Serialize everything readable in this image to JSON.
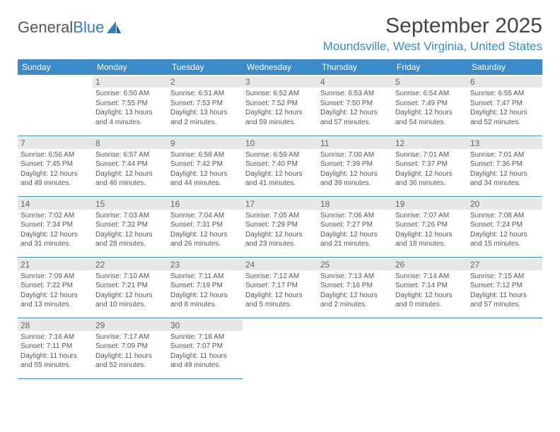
{
  "brand": {
    "part1": "General",
    "part2": "Blue"
  },
  "title": "September 2025",
  "location": "Moundsville, West Virginia, United States",
  "day_headers": [
    "Sunday",
    "Monday",
    "Tuesday",
    "Wednesday",
    "Thursday",
    "Friday",
    "Saturday"
  ],
  "colors": {
    "header_bg": "#3b8bc9",
    "daynum_bg": "#e7e7e7",
    "text": "#555"
  },
  "weeks": [
    [
      null,
      {
        "n": "1",
        "sr": "Sunrise: 6:50 AM",
        "ss": "Sunset: 7:55 PM",
        "d1": "Daylight: 13 hours",
        "d2": "and 4 minutes."
      },
      {
        "n": "2",
        "sr": "Sunrise: 6:51 AM",
        "ss": "Sunset: 7:53 PM",
        "d1": "Daylight: 13 hours",
        "d2": "and 2 minutes."
      },
      {
        "n": "3",
        "sr": "Sunrise: 6:52 AM",
        "ss": "Sunset: 7:52 PM",
        "d1": "Daylight: 12 hours",
        "d2": "and 59 minutes."
      },
      {
        "n": "4",
        "sr": "Sunrise: 6:53 AM",
        "ss": "Sunset: 7:50 PM",
        "d1": "Daylight: 12 hours",
        "d2": "and 57 minutes."
      },
      {
        "n": "5",
        "sr": "Sunrise: 6:54 AM",
        "ss": "Sunset: 7:49 PM",
        "d1": "Daylight: 12 hours",
        "d2": "and 54 minutes."
      },
      {
        "n": "6",
        "sr": "Sunrise: 6:55 AM",
        "ss": "Sunset: 7:47 PM",
        "d1": "Daylight: 12 hours",
        "d2": "and 52 minutes."
      }
    ],
    [
      {
        "n": "7",
        "sr": "Sunrise: 6:56 AM",
        "ss": "Sunset: 7:45 PM",
        "d1": "Daylight: 12 hours",
        "d2": "and 49 minutes."
      },
      {
        "n": "8",
        "sr": "Sunrise: 6:57 AM",
        "ss": "Sunset: 7:44 PM",
        "d1": "Daylight: 12 hours",
        "d2": "and 46 minutes."
      },
      {
        "n": "9",
        "sr": "Sunrise: 6:58 AM",
        "ss": "Sunset: 7:42 PM",
        "d1": "Daylight: 12 hours",
        "d2": "and 44 minutes."
      },
      {
        "n": "10",
        "sr": "Sunrise: 6:59 AM",
        "ss": "Sunset: 7:40 PM",
        "d1": "Daylight: 12 hours",
        "d2": "and 41 minutes."
      },
      {
        "n": "11",
        "sr": "Sunrise: 7:00 AM",
        "ss": "Sunset: 7:39 PM",
        "d1": "Daylight: 12 hours",
        "d2": "and 39 minutes."
      },
      {
        "n": "12",
        "sr": "Sunrise: 7:01 AM",
        "ss": "Sunset: 7:37 PM",
        "d1": "Daylight: 12 hours",
        "d2": "and 36 minutes."
      },
      {
        "n": "13",
        "sr": "Sunrise: 7:01 AM",
        "ss": "Sunset: 7:36 PM",
        "d1": "Daylight: 12 hours",
        "d2": "and 34 minutes."
      }
    ],
    [
      {
        "n": "14",
        "sr": "Sunrise: 7:02 AM",
        "ss": "Sunset: 7:34 PM",
        "d1": "Daylight: 12 hours",
        "d2": "and 31 minutes."
      },
      {
        "n": "15",
        "sr": "Sunrise: 7:03 AM",
        "ss": "Sunset: 7:32 PM",
        "d1": "Daylight: 12 hours",
        "d2": "and 28 minutes."
      },
      {
        "n": "16",
        "sr": "Sunrise: 7:04 AM",
        "ss": "Sunset: 7:31 PM",
        "d1": "Daylight: 12 hours",
        "d2": "and 26 minutes."
      },
      {
        "n": "17",
        "sr": "Sunrise: 7:05 AM",
        "ss": "Sunset: 7:29 PM",
        "d1": "Daylight: 12 hours",
        "d2": "and 23 minutes."
      },
      {
        "n": "18",
        "sr": "Sunrise: 7:06 AM",
        "ss": "Sunset: 7:27 PM",
        "d1": "Daylight: 12 hours",
        "d2": "and 21 minutes."
      },
      {
        "n": "19",
        "sr": "Sunrise: 7:07 AM",
        "ss": "Sunset: 7:26 PM",
        "d1": "Daylight: 12 hours",
        "d2": "and 18 minutes."
      },
      {
        "n": "20",
        "sr": "Sunrise: 7:08 AM",
        "ss": "Sunset: 7:24 PM",
        "d1": "Daylight: 12 hours",
        "d2": "and 15 minutes."
      }
    ],
    [
      {
        "n": "21",
        "sr": "Sunrise: 7:09 AM",
        "ss": "Sunset: 7:22 PM",
        "d1": "Daylight: 12 hours",
        "d2": "and 13 minutes."
      },
      {
        "n": "22",
        "sr": "Sunrise: 7:10 AM",
        "ss": "Sunset: 7:21 PM",
        "d1": "Daylight: 12 hours",
        "d2": "and 10 minutes."
      },
      {
        "n": "23",
        "sr": "Sunrise: 7:11 AM",
        "ss": "Sunset: 7:19 PM",
        "d1": "Daylight: 12 hours",
        "d2": "and 8 minutes."
      },
      {
        "n": "24",
        "sr": "Sunrise: 7:12 AM",
        "ss": "Sunset: 7:17 PM",
        "d1": "Daylight: 12 hours",
        "d2": "and 5 minutes."
      },
      {
        "n": "25",
        "sr": "Sunrise: 7:13 AM",
        "ss": "Sunset: 7:16 PM",
        "d1": "Daylight: 12 hours",
        "d2": "and 2 minutes."
      },
      {
        "n": "26",
        "sr": "Sunrise: 7:14 AM",
        "ss": "Sunset: 7:14 PM",
        "d1": "Daylight: 12 hours",
        "d2": "and 0 minutes."
      },
      {
        "n": "27",
        "sr": "Sunrise: 7:15 AM",
        "ss": "Sunset: 7:12 PM",
        "d1": "Daylight: 11 hours",
        "d2": "and 57 minutes."
      }
    ],
    [
      {
        "n": "28",
        "sr": "Sunrise: 7:16 AM",
        "ss": "Sunset: 7:11 PM",
        "d1": "Daylight: 11 hours",
        "d2": "and 55 minutes."
      },
      {
        "n": "29",
        "sr": "Sunrise: 7:17 AM",
        "ss": "Sunset: 7:09 PM",
        "d1": "Daylight: 11 hours",
        "d2": "and 52 minutes."
      },
      {
        "n": "30",
        "sr": "Sunrise: 7:18 AM",
        "ss": "Sunset: 7:07 PM",
        "d1": "Daylight: 11 hours",
        "d2": "and 49 minutes."
      },
      null,
      null,
      null,
      null
    ]
  ]
}
